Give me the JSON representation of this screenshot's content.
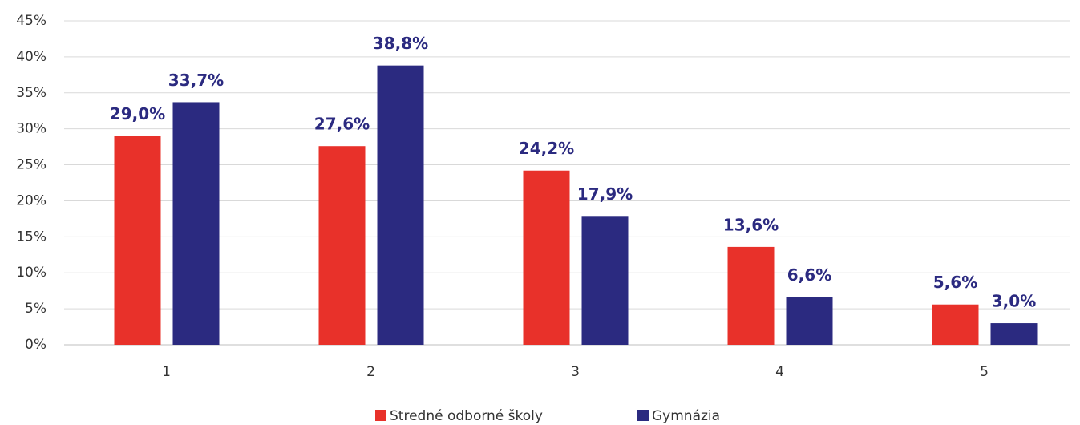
{
  "chart_data": {
    "type": "bar",
    "categories": [
      "1",
      "2",
      "3",
      "4",
      "5"
    ],
    "series": [
      {
        "name": "Stredné odborné školy",
        "color": "#e8312a",
        "values": [
          29.0,
          27.6,
          24.2,
          13.6,
          5.6
        ],
        "value_labels": [
          "29,0%",
          "27,6%",
          "24,2%",
          "13,6%",
          "5,6%"
        ]
      },
      {
        "name": "Gymnázia",
        "color": "#2b2a80",
        "values": [
          33.7,
          38.8,
          17.9,
          6.6,
          3.0
        ],
        "value_labels": [
          "33,7%",
          "38,8%",
          "17,9%",
          "6,6%",
          "3,0%"
        ]
      }
    ],
    "ylim": [
      0,
      45
    ],
    "yticks": [
      {
        "value": 0,
        "label": "0%"
      },
      {
        "value": 5,
        "label": "5%"
      },
      {
        "value": 10,
        "label": "10%"
      },
      {
        "value": 15,
        "label": "15%"
      },
      {
        "value": 20,
        "label": "20%"
      },
      {
        "value": 25,
        "label": "25%"
      },
      {
        "value": 30,
        "label": "30%"
      },
      {
        "value": 35,
        "label": "35%"
      },
      {
        "value": 40,
        "label": "40%"
      },
      {
        "value": 45,
        "label": "45%"
      }
    ],
    "grid": true,
    "legend": "bottom"
  }
}
